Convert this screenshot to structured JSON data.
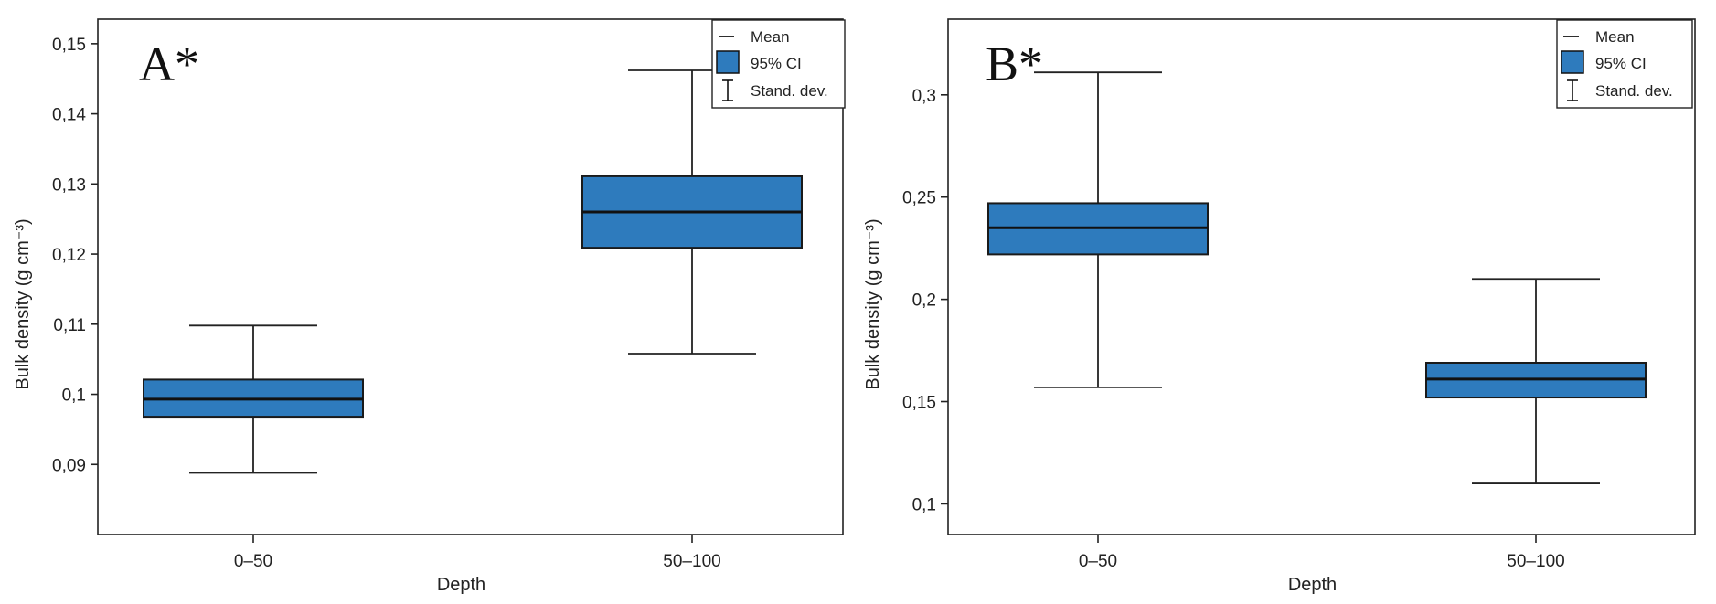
{
  "chart_data": [
    {
      "type": "box",
      "panel_label": "A*",
      "xlabel": "Depth",
      "ylabel": "Bulk density (g cm⁻³)",
      "ylim": [
        0.08,
        0.1535
      ],
      "yticks": [
        0.09,
        0.1,
        0.11,
        0.12,
        0.13,
        0.14,
        0.15
      ],
      "ytick_labels": [
        "0,09",
        "0,1",
        "0,11",
        "0,12",
        "0,13",
        "0,14",
        "0,15"
      ],
      "categories": [
        "0–50",
        "50–100"
      ],
      "series": [
        {
          "category": "0–50",
          "mean": 0.0993,
          "ci_low": 0.0968,
          "ci_high": 0.1021,
          "sd_low": 0.0888,
          "sd_high": 0.1098
        },
        {
          "category": "50–100",
          "mean": 0.126,
          "ci_low": 0.1209,
          "ci_high": 0.1311,
          "sd_low": 0.1058,
          "sd_high": 0.1462
        }
      ],
      "legend": {
        "mean": "Mean",
        "ci": "95% CI",
        "sd": "Stand. dev."
      }
    },
    {
      "type": "box",
      "panel_label": "B*",
      "xlabel": "Depth",
      "ylabel": "Bulk density (g cm⁻³)",
      "ylim": [
        0.085,
        0.337
      ],
      "yticks": [
        0.1,
        0.15,
        0.2,
        0.25,
        0.3
      ],
      "ytick_labels": [
        "0,1",
        "0,15",
        "0,2",
        "0,25",
        "0,3"
      ],
      "categories": [
        "0–50",
        "50–100"
      ],
      "series": [
        {
          "category": "0–50",
          "mean": 0.235,
          "ci_low": 0.222,
          "ci_high": 0.247,
          "sd_low": 0.157,
          "sd_high": 0.311
        },
        {
          "category": "50–100",
          "mean": 0.161,
          "ci_low": 0.152,
          "ci_high": 0.169,
          "sd_low": 0.11,
          "sd_high": 0.21
        }
      ],
      "legend": {
        "mean": "Mean",
        "ci": "95% CI",
        "sd": "Stand. dev."
      }
    }
  ],
  "colors": {
    "box_fill": "#2e7bbd",
    "axis": "#222222"
  }
}
